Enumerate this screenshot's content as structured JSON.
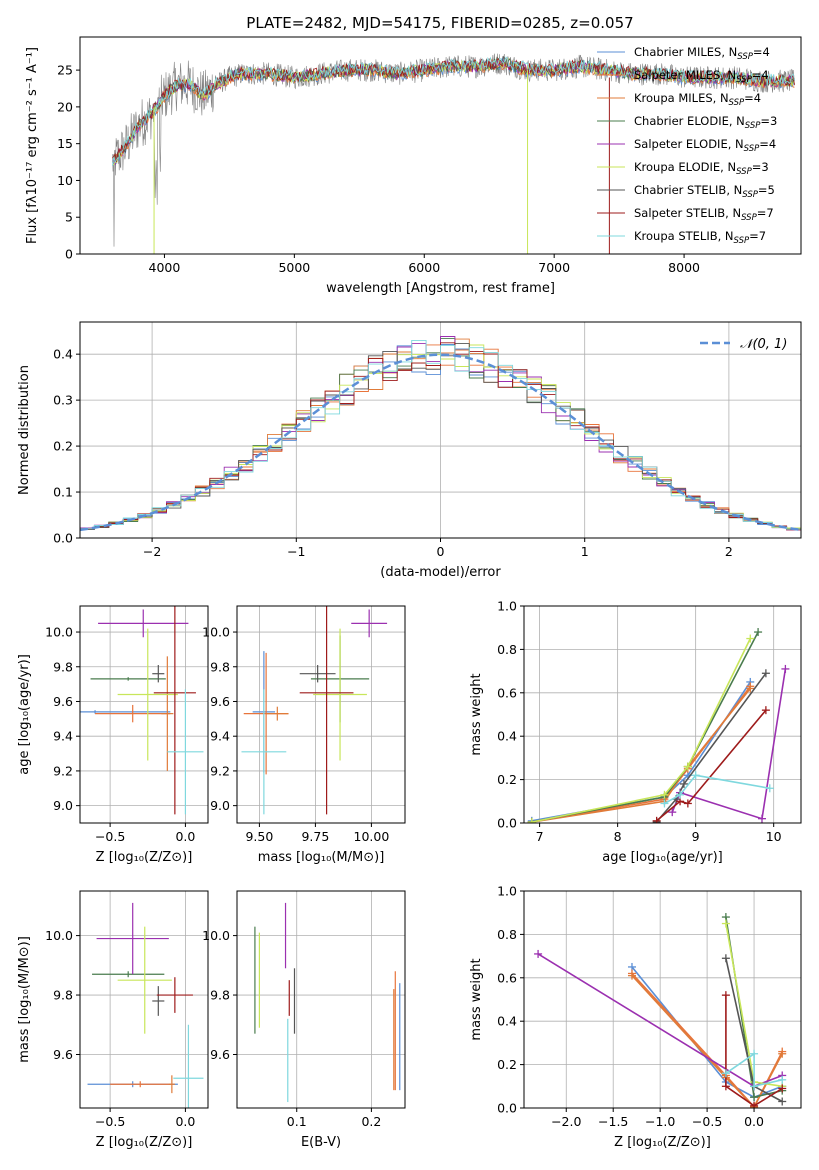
{
  "figure_title": "PLATE=2482, MJD=54175, FIBERID=0285, z=0.057",
  "models": [
    {
      "name": "Chabrier MILES",
      "nssp": "4",
      "color": "#5b8fd6"
    },
    {
      "name": "Salpeter MILES",
      "nssp": "4",
      "color": "#e8743b"
    },
    {
      "name": "Kroupa MILES",
      "nssp": "4",
      "color": "#e07b39"
    },
    {
      "name": "Chabrier ELODIE",
      "nssp": "3",
      "color": "#4a7c4e"
    },
    {
      "name": "Salpeter ELODIE",
      "nssp": "4",
      "color": "#9b30b0"
    },
    {
      "name": "Kroupa ELODIE",
      "nssp": "3",
      "color": "#c8e65a"
    },
    {
      "name": "Chabrier STELIB",
      "nssp": "5",
      "color": "#555555"
    },
    {
      "name": "Salpeter STELIB",
      "nssp": "7",
      "color": "#9e1b1b"
    },
    {
      "name": "Kroupa STELIB",
      "nssp": "7",
      "color": "#7fd8de"
    }
  ],
  "legend_nssp_prefix": "N",
  "legend_nssp_sub": "SSP",
  "legend_nssp_eq": "=",
  "chart_data": [
    {
      "id": "spectrum",
      "type": "line",
      "xlabel": "wavelength [Angstrom, rest frame]",
      "ylabel": "Flux [fλ10⁻¹⁷ erg cm⁻² s⁻¹ A⁻¹]",
      "xlim": [
        3350,
        8900
      ],
      "ylim": [
        0,
        29.5
      ],
      "xticks": [
        4000,
        5000,
        6000,
        7000,
        8000
      ],
      "yticks": [
        0,
        5,
        10,
        15,
        20,
        25
      ],
      "grid": false,
      "legend": "right",
      "x": [
        3600,
        3700,
        3800,
        3900,
        4000,
        4100,
        4200,
        4300,
        4400,
        4500,
        4600,
        4800,
        5000,
        5200,
        5400,
        5600,
        5800,
        6000,
        6200,
        6400,
        6600,
        6800,
        7000,
        7200,
        7400,
        7600,
        7800,
        8000,
        8200,
        8400,
        8600,
        8800
      ],
      "model_flux": [
        12.5,
        14.5,
        17.5,
        19,
        21.5,
        23,
        23,
        21.5,
        23,
        24,
        24.5,
        24.5,
        24,
        24.5,
        25,
        25,
        24.5,
        25,
        25.5,
        25.5,
        26,
        25,
        25,
        25.5,
        25,
        24.5,
        24.5,
        24,
        24,
        24,
        23.5,
        23.5
      ]
    },
    {
      "id": "residuals",
      "type": "histogram",
      "xlabel": "(data-model)/error",
      "ylabel": "Normed distribution",
      "xlim": [
        -2.5,
        2.5
      ],
      "ylim": [
        0,
        0.47
      ],
      "xticks": [
        -2,
        -1,
        0,
        1,
        2
      ],
      "xtick_labels": [
        "−2",
        "−1",
        "0",
        "1",
        "2"
      ],
      "yticks": [
        0.0,
        0.1,
        0.2,
        0.3,
        0.4
      ],
      "grid": true,
      "legend": "top-right",
      "legend_label": "𝒩(0, 1)",
      "reference_curve": "normal(0,1)",
      "bin_width": 0.1,
      "bins_start": -2.5
    },
    {
      "id": "age_vs_Z",
      "type": "errorbar",
      "xlabel": "Z [log₁₀(Z/Z⊙)]",
      "ylabel": "age  [log₁₀(age/yr)]",
      "xlim": [
        -0.7,
        0.15
      ],
      "ylim": [
        8.9,
        10.15
      ],
      "xticks": [
        -0.5,
        0.0
      ],
      "xtick_labels": [
        "−0.5",
        "0.0"
      ],
      "yticks": [
        9.0,
        9.2,
        9.4,
        9.6,
        9.8,
        10.0
      ],
      "grid": true,
      "points": [
        {
          "x": -0.6,
          "y": 9.54,
          "xerr": 0.5,
          "yerr": 0.01,
          "c": 0
        },
        {
          "x": -0.35,
          "y": 9.53,
          "xerr": 0.25,
          "yerr": 0.05,
          "c": 1
        },
        {
          "x": -0.12,
          "y": 9.53,
          "xerr": 0.04,
          "yerr": 0.33,
          "c": 2
        },
        {
          "x": -0.38,
          "y": 9.73,
          "xerr": 0.25,
          "yerr": 0.01,
          "c": 3
        },
        {
          "x": -0.28,
          "y": 10.05,
          "xerr": 0.3,
          "yerr": 0.08,
          "c": 4
        },
        {
          "x": -0.25,
          "y": 9.64,
          "xerr": 0.2,
          "yerr": 0.38,
          "c": 5
        },
        {
          "x": -0.18,
          "y": 9.76,
          "xerr": 0.04,
          "yerr": 0.05,
          "c": 6
        },
        {
          "x": -0.07,
          "y": 9.65,
          "xerr": 0.14,
          "yerr": 0.7,
          "c": 7
        },
        {
          "x": 0.0,
          "y": 9.31,
          "xerr": 0.12,
          "yerr": 0.36,
          "c": 8
        }
      ]
    },
    {
      "id": "age_vs_mass",
      "type": "errorbar",
      "xlabel": "mass [log₁₀(M/M⊙)]",
      "ylabel": "",
      "xlim": [
        9.4,
        10.15
      ],
      "ylim": [
        8.9,
        10.15
      ],
      "xticks": [
        9.5,
        9.75,
        10.0
      ],
      "xtick_labels": [
        "9.50",
        "9.75",
        "10.00"
      ],
      "yticks": [
        9.0,
        9.2,
        9.4,
        9.6,
        9.8,
        10.0
      ],
      "grid": true,
      "points": [
        {
          "x": 9.52,
          "y": 9.54,
          "xerr": 0.05,
          "yerr": 0.35,
          "c": 0
        },
        {
          "x": 9.53,
          "y": 9.53,
          "xerr": 0.1,
          "yerr": 0.35,
          "c": 1
        },
        {
          "x": 9.58,
          "y": 9.53,
          "xerr": 0.05,
          "yerr": 0.04,
          "c": 2
        },
        {
          "x": 9.86,
          "y": 9.73,
          "xerr": 0.13,
          "yerr": 0.25,
          "c": 3
        },
        {
          "x": 9.99,
          "y": 10.05,
          "xerr": 0.08,
          "yerr": 0.08,
          "c": 4
        },
        {
          "x": 9.86,
          "y": 9.64,
          "xerr": 0.12,
          "yerr": 0.38,
          "c": 5
        },
        {
          "x": 9.76,
          "y": 9.76,
          "xerr": 0.08,
          "yerr": 0.05,
          "c": 6
        },
        {
          "x": 9.8,
          "y": 9.65,
          "xerr": 0.12,
          "yerr": 0.7,
          "c": 7
        },
        {
          "x": 9.52,
          "y": 9.31,
          "xerr": 0.1,
          "yerr": 0.36,
          "c": 8
        }
      ]
    },
    {
      "id": "mass_weight_vs_age",
      "type": "line",
      "xlabel": "age  [log₁₀(age/yr)]",
      "ylabel": "mass weight",
      "xlim": [
        6.8,
        10.35
      ],
      "ylim": [
        0.0,
        1.0
      ],
      "xticks": [
        7,
        8,
        9,
        10
      ],
      "yticks": [
        0.0,
        0.2,
        0.4,
        0.6,
        0.8,
        1.0
      ],
      "grid": true,
      "series": [
        {
          "c": 0,
          "x": [
            6.9,
            8.6,
            8.9,
            9.7
          ],
          "y": [
            0.01,
            0.12,
            0.22,
            0.65
          ]
        },
        {
          "c": 1,
          "x": [
            6.9,
            8.6,
            8.9,
            9.7
          ],
          "y": [
            0.005,
            0.11,
            0.25,
            0.63
          ]
        },
        {
          "c": 2,
          "x": [
            6.9,
            8.6,
            8.9,
            9.7
          ],
          "y": [
            0.004,
            0.1,
            0.26,
            0.62
          ]
        },
        {
          "c": 3,
          "x": [
            6.9,
            8.6,
            8.9,
            9.8
          ],
          "y": [
            0.005,
            0.12,
            0.26,
            0.88
          ]
        },
        {
          "c": 4,
          "x": [
            8.7,
            8.8,
            9.85,
            10.15
          ],
          "y": [
            0.05,
            0.14,
            0.02,
            0.71
          ]
        },
        {
          "c": 5,
          "x": [
            6.9,
            8.6,
            8.9,
            9.7
          ],
          "y": [
            0.004,
            0.13,
            0.26,
            0.85
          ]
        },
        {
          "c": 6,
          "x": [
            8.5,
            8.75,
            8.85,
            9.9
          ],
          "y": [
            0.005,
            0.11,
            0.18,
            0.69
          ]
        },
        {
          "c": 7,
          "x": [
            8.5,
            8.8,
            8.9,
            9.9
          ],
          "y": [
            0.01,
            0.1,
            0.09,
            0.52
          ]
        },
        {
          "c": 8,
          "x": [
            8.6,
            8.8,
            9.0,
            9.95
          ],
          "y": [
            0.09,
            0.13,
            0.22,
            0.16
          ]
        }
      ]
    },
    {
      "id": "mass_vs_Z",
      "type": "errorbar",
      "xlabel": "Z [log₁₀(Z/Z⊙)]",
      "ylabel": "mass [log₁₀(M/M⊙)]",
      "xlim": [
        -0.7,
        0.15
      ],
      "ylim": [
        9.42,
        10.15
      ],
      "xticks": [
        -0.5,
        0.0
      ],
      "xtick_labels": [
        "−0.5",
        "0.0"
      ],
      "yticks": [
        9.6,
        9.8,
        10.0
      ],
      "grid": true,
      "points": [
        {
          "x": -0.35,
          "y": 9.5,
          "xerr": 0.3,
          "yerr": 0.01,
          "c": 0
        },
        {
          "x": -0.3,
          "y": 9.5,
          "xerr": 0.2,
          "yerr": 0.01,
          "c": 1
        },
        {
          "x": -0.09,
          "y": 9.5,
          "xerr": 0.02,
          "yerr": 0.03,
          "c": 2
        },
        {
          "x": -0.38,
          "y": 9.87,
          "xerr": 0.24,
          "yerr": 0.01,
          "c": 3
        },
        {
          "x": -0.35,
          "y": 9.99,
          "xerr": 0.24,
          "yerr": 0.12,
          "c": 4
        },
        {
          "x": -0.27,
          "y": 9.85,
          "xerr": 0.18,
          "yerr": 0.18,
          "c": 5
        },
        {
          "x": -0.18,
          "y": 9.78,
          "xerr": 0.04,
          "yerr": 0.05,
          "c": 6
        },
        {
          "x": -0.07,
          "y": 9.8,
          "xerr": 0.12,
          "yerr": 0.06,
          "c": 7
        },
        {
          "x": 0.02,
          "y": 9.52,
          "xerr": 0.1,
          "yerr": 0.18,
          "c": 8
        }
      ]
    },
    {
      "id": "mass_vs_EBV",
      "type": "errorbar",
      "xlabel": "E(B-V)",
      "ylabel": "",
      "xlim": [
        0.02,
        0.245
      ],
      "ylim": [
        9.42,
        10.15
      ],
      "xticks": [
        0.1,
        0.2
      ],
      "xtick_labels": [
        "0.1",
        "0.2"
      ],
      "yticks": [
        9.6,
        9.8,
        10.0
      ],
      "grid": true,
      "points": [
        {
          "x": 0.238,
          "y": 9.66,
          "xerr": 0.0,
          "yerr": 0.18,
          "c": 0
        },
        {
          "x": 0.232,
          "y": 9.68,
          "xerr": 0.0,
          "yerr": 0.2,
          "c": 1
        },
        {
          "x": 0.23,
          "y": 9.65,
          "xerr": 0.0,
          "yerr": 0.17,
          "c": 2
        },
        {
          "x": 0.044,
          "y": 9.85,
          "xerr": 0.0,
          "yerr": 0.18,
          "c": 3
        },
        {
          "x": 0.085,
          "y": 10.0,
          "xerr": 0.0,
          "yerr": 0.11,
          "c": 4
        },
        {
          "x": 0.05,
          "y": 9.85,
          "xerr": 0.0,
          "yerr": 0.16,
          "c": 5
        },
        {
          "x": 0.097,
          "y": 9.78,
          "xerr": 0.0,
          "yerr": 0.11,
          "c": 6
        },
        {
          "x": 0.09,
          "y": 9.79,
          "xerr": 0.0,
          "yerr": 0.06,
          "c": 7
        },
        {
          "x": 0.088,
          "y": 9.58,
          "xerr": 0.0,
          "yerr": 0.14,
          "c": 8
        }
      ]
    },
    {
      "id": "mass_weight_vs_Z",
      "type": "line",
      "xlabel": "Z [log₁₀(Z/Z⊙)]",
      "ylabel": "mass weight",
      "xlim": [
        -2.45,
        0.5
      ],
      "ylim": [
        0.0,
        1.0
      ],
      "xticks": [
        -2.0,
        -1.5,
        -1.0,
        -0.5,
        0.0
      ],
      "xtick_labels": [
        "−2.0",
        "−1.5",
        "−1.0",
        "−0.5",
        "0.0"
      ],
      "yticks": [
        0.0,
        0.2,
        0.4,
        0.6,
        0.8,
        1.0
      ],
      "grid": true,
      "series": [
        {
          "c": 0,
          "x": [
            -1.3,
            -0.3,
            0.0,
            0.3
          ],
          "y": [
            0.65,
            0.12,
            0.05,
            0.1
          ]
        },
        {
          "c": 1,
          "x": [
            -1.3,
            -0.3,
            0.0,
            0.3
          ],
          "y": [
            0.62,
            0.15,
            0.005,
            0.26
          ]
        },
        {
          "c": 2,
          "x": [
            -1.3,
            -0.3,
            0.0,
            0.3
          ],
          "y": [
            0.61,
            0.14,
            0.004,
            0.25
          ]
        },
        {
          "c": 3,
          "x": [
            -0.3,
            0.0,
            0.3
          ],
          "y": [
            0.88,
            0.05,
            0.08
          ]
        },
        {
          "c": 4,
          "x": [
            -2.3,
            0.0,
            0.3
          ],
          "y": [
            0.71,
            0.1,
            0.15
          ]
        },
        {
          "c": 5,
          "x": [
            -0.3,
            0.0,
            0.3
          ],
          "y": [
            0.85,
            0.12,
            0.1
          ]
        },
        {
          "c": 6,
          "x": [
            -0.3,
            0.0,
            0.3
          ],
          "y": [
            0.69,
            0.1,
            0.03
          ]
        },
        {
          "c": 7,
          "x": [
            -0.3,
            -0.3,
            0.0,
            0.3
          ],
          "y": [
            0.52,
            0.1,
            0.01,
            0.09
          ]
        },
        {
          "c": 8,
          "x": [
            -0.3,
            0.0,
            0.0,
            0.3
          ],
          "y": [
            0.16,
            0.25,
            0.1,
            0.13
          ]
        }
      ]
    }
  ]
}
